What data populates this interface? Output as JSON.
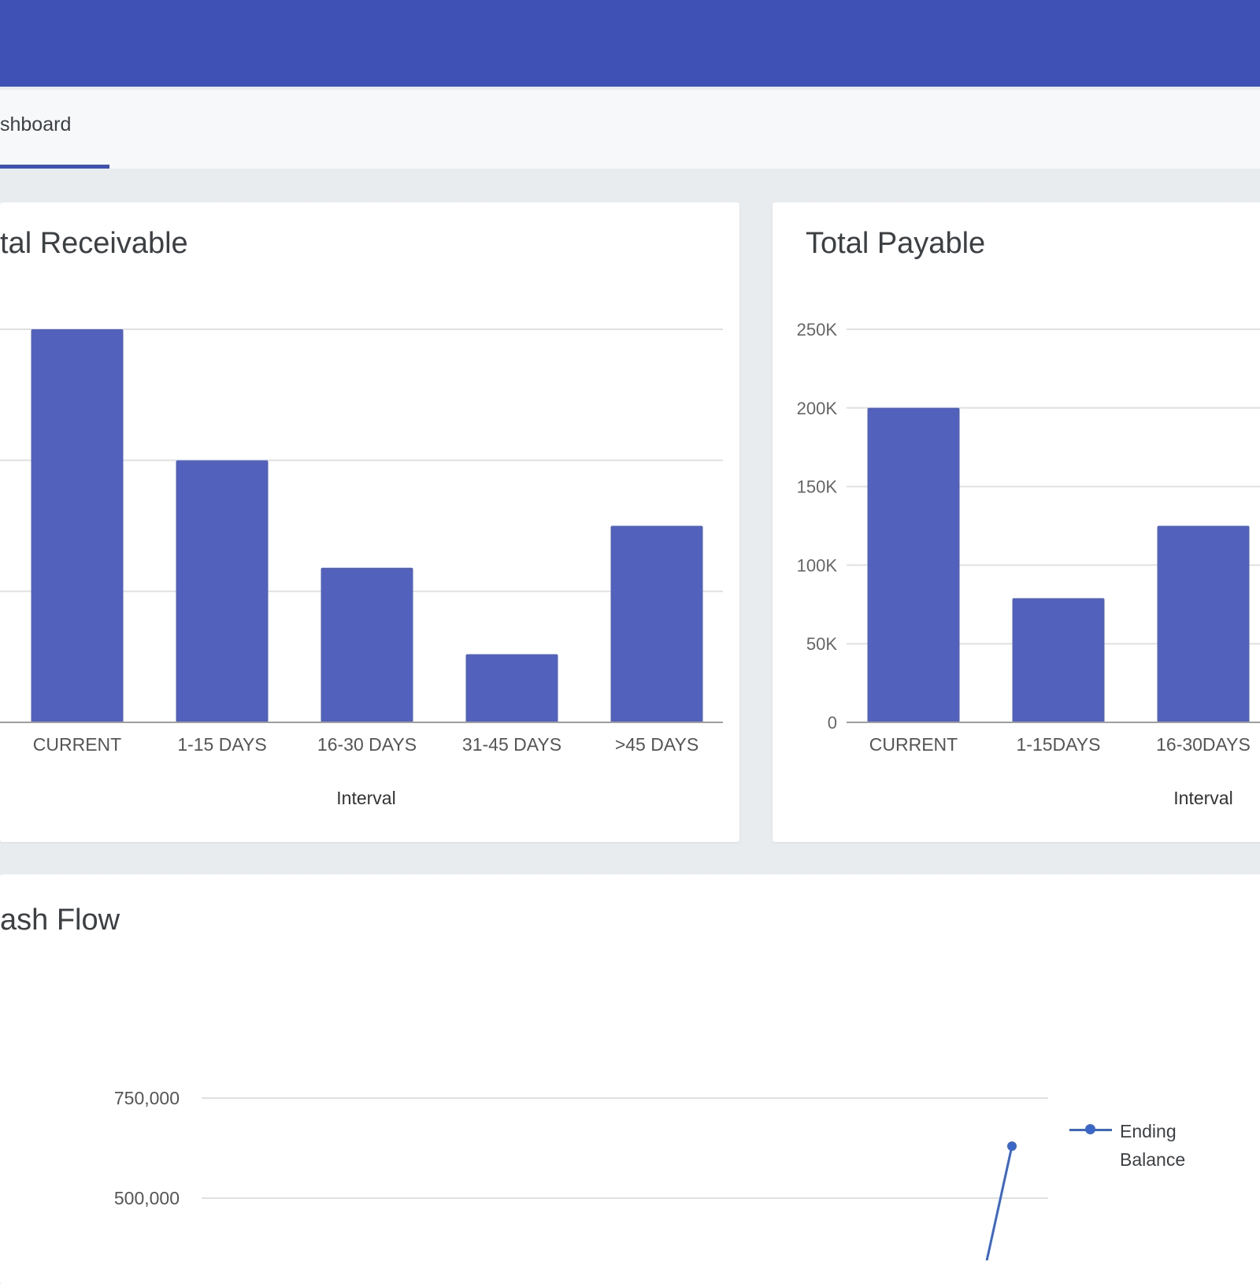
{
  "tabs": [
    {
      "label": "shboard",
      "active": true
    }
  ],
  "colors": {
    "primary": "#3f51b5",
    "bar": "#5262bc",
    "line": "#3b67c9",
    "grid": "#e0e0e0"
  },
  "cards": {
    "receivable": {
      "title": "tal Receivable"
    },
    "payable": {
      "title": "Total Payable"
    },
    "cashflow": {
      "title": "ash Flow"
    }
  },
  "chart_data": [
    {
      "type": "bar",
      "title": "tal Receivable",
      "categories": [
        "CURRENT",
        "1-15 DAYS",
        "16-30 DAYS",
        "31-45 DAYS",
        ">45 DAYS"
      ],
      "values": [
        300,
        200,
        118,
        52,
        150
      ],
      "xlabel": "Interval",
      "ylabel": "",
      "ylim": [
        0,
        300
      ],
      "y_ticks": [
        0,
        100,
        200,
        300
      ],
      "y_tick_labels_visible": false,
      "grid": true
    },
    {
      "type": "bar",
      "title": "Total Payable",
      "categories": [
        "CURRENT",
        "1-15DAYS",
        "16-30DAYS"
      ],
      "values": [
        200000,
        79000,
        125000
      ],
      "xlabel": "Interval",
      "ylabel": "",
      "ylim": [
        0,
        250000
      ],
      "y_ticks": [
        0,
        50000,
        100000,
        150000,
        200000,
        250000
      ],
      "y_tick_labels": [
        "0",
        "50K",
        "100K",
        "150K",
        "200K",
        "250K"
      ],
      "grid": true
    },
    {
      "type": "line",
      "title": "ash Flow",
      "series": [
        {
          "name": "Ending Balance",
          "points": [
            {
              "x": 1,
              "y": 630000
            }
          ]
        }
      ],
      "y_ticks": [
        500000,
        750000
      ],
      "y_tick_labels": [
        "500,000",
        "750,000"
      ],
      "grid": true,
      "legend": "right"
    }
  ]
}
